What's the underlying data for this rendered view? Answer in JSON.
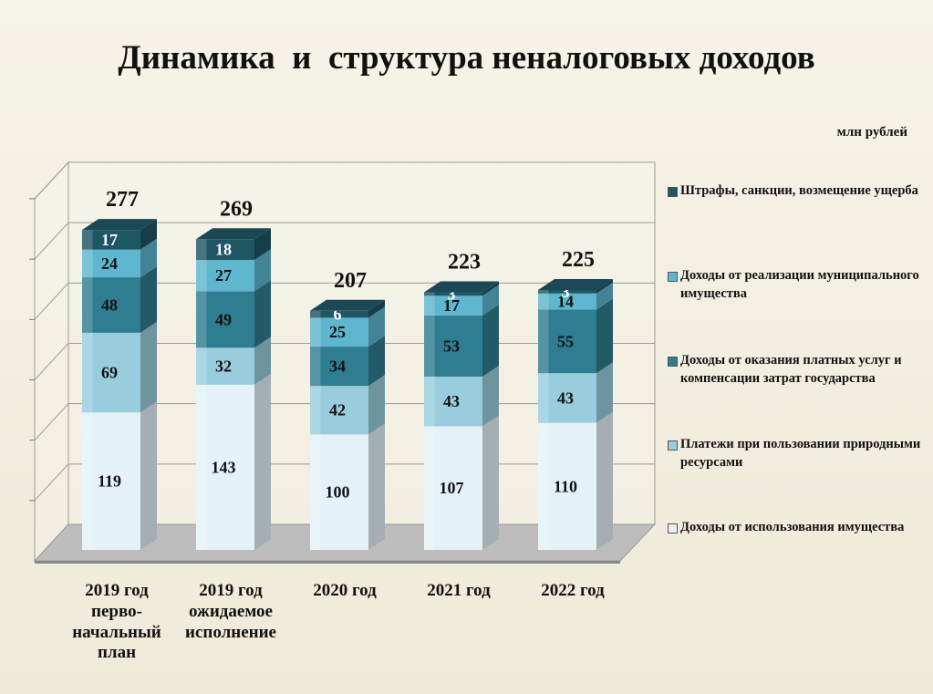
{
  "title": "Динамика  и  структура неналоговых доходов",
  "units": "млн рублей",
  "colors": {
    "s1": "#e4f2f8",
    "s2": "#99cddd",
    "s3": "#2f7d91",
    "s4": "#5fb6cf",
    "s5": "#1e5664"
  },
  "chart_data": {
    "type": "bar",
    "stacked": true,
    "categories": [
      "2019 год первоначальный план",
      "2019 год ожидаемое исполнение",
      "2020 год",
      "2021 год",
      "2022 год"
    ],
    "category_lines": [
      [
        "2019 год",
        "перво-",
        "начальный",
        "план"
      ],
      [
        "2019 год",
        "ожидаемое",
        "исполнение"
      ],
      [
        "2020 год"
      ],
      [
        "2021 год"
      ],
      [
        "2022 год"
      ]
    ],
    "series": [
      {
        "name": "Доходы от использования имущества",
        "values": [
          119,
          143,
          100,
          107,
          110
        ]
      },
      {
        "name": "Платежи при пользовании природными ресурсами",
        "values": [
          69,
          32,
          42,
          43,
          43
        ]
      },
      {
        "name": "Доходы от оказания платных услуг и компенсации затрат государства",
        "values": [
          48,
          49,
          34,
          53,
          55
        ]
      },
      {
        "name": "Доходы от реализации муниципального имущества",
        "values": [
          24,
          27,
          25,
          17,
          14
        ]
      },
      {
        "name": "Штрафы, санкции, возмещение ущерба",
        "values": [
          17,
          18,
          6,
          3,
          3
        ]
      }
    ],
    "totals": [
      277,
      269,
      207,
      223,
      225
    ],
    "ylim": [
      0,
      300
    ],
    "grid": true,
    "legend_position": "right"
  }
}
